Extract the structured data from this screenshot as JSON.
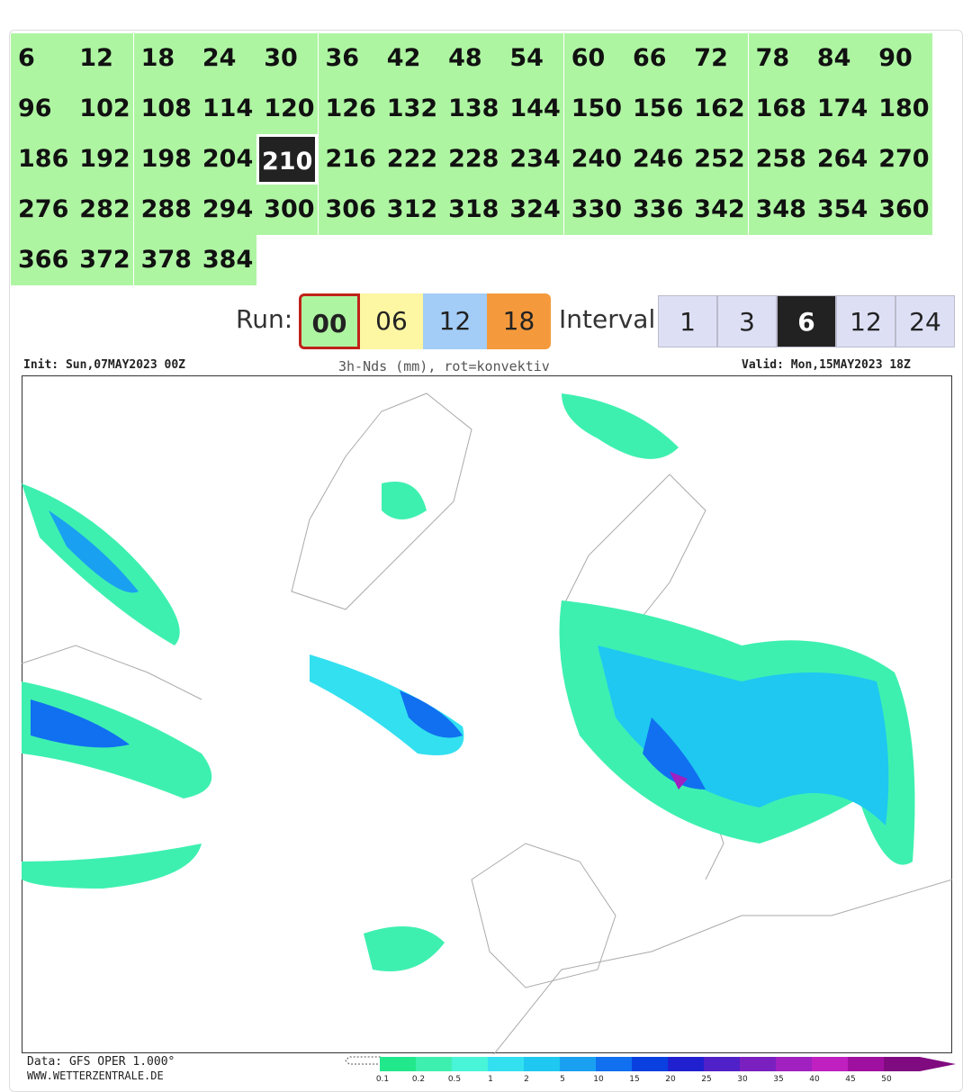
{
  "hours": {
    "items": [
      "6",
      "12",
      "18",
      "24",
      "30",
      "36",
      "42",
      "48",
      "54",
      "60",
      "66",
      "72",
      "78",
      "84",
      "90",
      "96",
      "102",
      "108",
      "114",
      "120",
      "126",
      "132",
      "138",
      "144",
      "150",
      "156",
      "162",
      "168",
      "174",
      "180",
      "186",
      "192",
      "198",
      "204",
      "210",
      "216",
      "222",
      "228",
      "234",
      "240",
      "246",
      "252",
      "258",
      "264",
      "270",
      "276",
      "282",
      "288",
      "294",
      "300",
      "306",
      "312",
      "318",
      "324",
      "330",
      "336",
      "342",
      "348",
      "354",
      "360",
      "366",
      "372",
      "378",
      "384"
    ],
    "selected": "210"
  },
  "run": {
    "label": "Run:",
    "options": [
      "00",
      "06",
      "12",
      "18"
    ],
    "colors": [
      "#aef5a2",
      "#fdf6a3",
      "#a3cdf7",
      "#f59a3c"
    ],
    "selected": "00"
  },
  "interval": {
    "label": "Interval",
    "options": [
      "1",
      "3",
      "6",
      "12",
      "24"
    ],
    "selected": "6"
  },
  "map": {
    "init": "Init: Sun,07MAY2023 00Z",
    "title": "3h-Nds (mm), rot=konvektiv",
    "valid": "Valid: Mon,15MAY2023 18Z",
    "source": "Data: GFS OPER 1.000°",
    "site": "WWW.WETTERZENTRALE.DE"
  },
  "legend": {
    "ticks": [
      "0.1",
      "0.2",
      "0.5",
      "1",
      "2",
      "5",
      "10",
      "15",
      "20",
      "25",
      "30",
      "35",
      "40",
      "45",
      "50"
    ],
    "colors": [
      "#22e88c",
      "#3ef0b0",
      "#48f5d8",
      "#33e0f0",
      "#1ec8f0",
      "#1aa0f0",
      "#1070f0",
      "#0a40e0",
      "#2020d0",
      "#5020c8",
      "#7a20c0",
      "#a020c0",
      "#c020c0",
      "#a010a0",
      "#800a80"
    ]
  }
}
